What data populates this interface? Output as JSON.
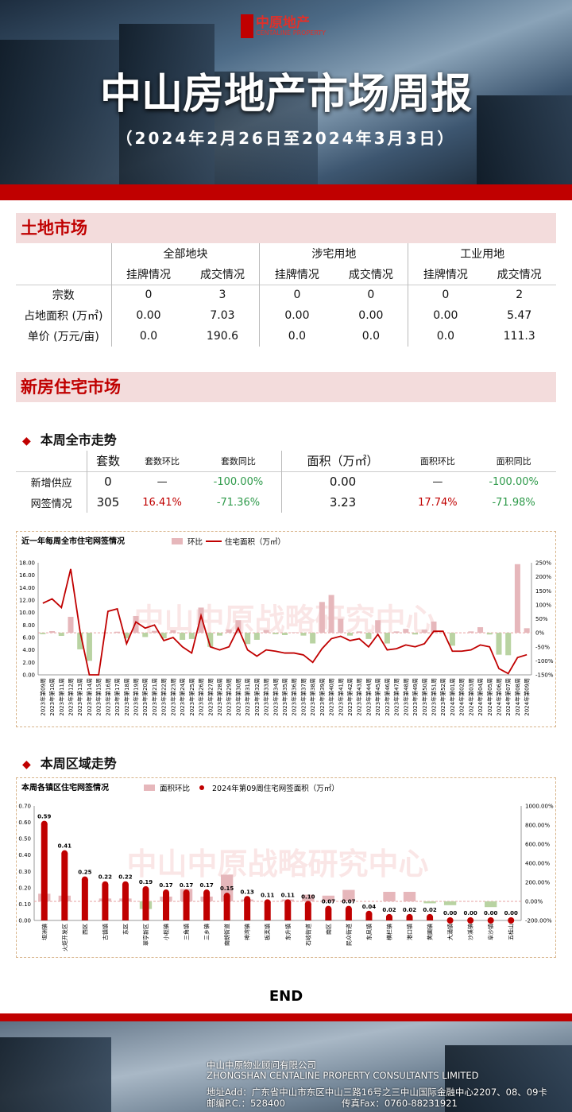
{
  "header": {
    "logo": "中原地产",
    "logo_en": "CENTALINE PROPERTY",
    "title": "中山房地产市场周报",
    "subtitle": "（2024年2月26日至2024年3月3日）"
  },
  "land_market": {
    "title": "土地市场",
    "table": {
      "groups": [
        "全部地块",
        "涉宅用地",
        "工业用地"
      ],
      "subheaders": [
        "挂牌情况",
        "成交情况",
        "挂牌情况",
        "成交情况",
        "挂牌情况",
        "成交情况"
      ],
      "rows": [
        [
          "宗数",
          "0",
          "3",
          "0",
          "0",
          "0",
          "2"
        ],
        [
          "占地面积 (万㎡)",
          "0.00",
          "7.03",
          "0.00",
          "0.00",
          "0.00",
          "5.47"
        ],
        [
          "单价 (万元/亩)",
          "0.0",
          "190.6",
          "0.0",
          "0.0",
          "0.0",
          "111.3"
        ]
      ]
    }
  },
  "new_home": {
    "title": "新房住宅市场",
    "city_trend": {
      "title": "本周全市走势",
      "table": {
        "header": [
          "",
          "套数",
          "套数环比",
          "套数同比",
          "面积（万㎡）",
          "面积环比",
          "面积同比"
        ],
        "rows": [
          [
            "新增供应",
            "0",
            "—",
            "-100.00%",
            "0.00",
            "—",
            "-100.00%"
          ],
          [
            "网签情况",
            "305",
            "16.41%",
            "-71.36%",
            "3.23",
            "17.74%",
            "-71.98%"
          ]
        ]
      }
    },
    "district_trend": {
      "title": "本周区域走势"
    }
  },
  "chart_data": [
    {
      "type": "combo",
      "title": "近一年每周全市住宅网签情况",
      "watermark": "中山中原战略研究中心",
      "grid": false,
      "categories": [
        "2023年第09周",
        "2023年第10周",
        "2023年第11周",
        "2023年第12周",
        "2023年第13周",
        "2023年第14周",
        "2023年第15周",
        "2023年第16周",
        "2023年第17周",
        "2023年第18周",
        "2023年第19周",
        "2023年第20周",
        "2023年第21周",
        "2023年第22周",
        "2023年第23周",
        "2023年第24周",
        "2023年第25周",
        "2023年第26周",
        "2023年第27周",
        "2023年第28周",
        "2023年第29周",
        "2023年第30周",
        "2023年第31周",
        "2023年第32周",
        "2023年第33周",
        "2023年第34周",
        "2023年第35周",
        "2023年第36周",
        "2023年第37周",
        "2023年第38周",
        "2023年第39周",
        "2023年第40周",
        "2023年第41周",
        "2023年第42周",
        "2023年第43周",
        "2023年第44周",
        "2023年第45周",
        "2023年第46周",
        "2023年第47周",
        "2023年第48周",
        "2023年第49周",
        "2023年第50周",
        "2023年第51周",
        "2023年第52周",
        "2024年第01周",
        "2024年第02周",
        "2024年第03周",
        "2024年第04周",
        "2024年第05周",
        "2024年第06周",
        "2024年第07周",
        "2024年第08周",
        "2024年第09周"
      ],
      "series": [
        {
          "name": "环比",
          "type": "bar",
          "axis": "y2",
          "color": "#e6b7bb",
          "negative_color": "#b9d3a2",
          "values": [
            -5,
            6,
            -11,
            57,
            -59,
            -100,
            0,
            0,
            4,
            -20,
            60,
            -15,
            7,
            -20,
            9,
            -25,
            -22,
            90,
            -50,
            -10,
            12,
            45,
            -40,
            -25,
            10,
            -5,
            -8,
            2,
            -10,
            -38,
            110,
            135,
            50,
            -10,
            5,
            -22,
            45,
            -38,
            5,
            14,
            -6,
            11,
            40,
            0,
            -46,
            0,
            5,
            20,
            -6,
            -78,
            -80,
            245,
            16.41
          ]
        },
        {
          "name": "住宅面积（万㎡）",
          "type": "line",
          "color": "#c00000",
          "values": [
            11.5,
            12.2,
            10.8,
            17.0,
            7.0,
            0,
            0,
            10.2,
            10.6,
            5.0,
            8.5,
            7.5,
            8.0,
            5.5,
            6.0,
            4.5,
            3.5,
            9.5,
            4.5,
            4.0,
            4.5,
            7.5,
            4.0,
            3.0,
            4.0,
            3.8,
            3.5,
            3.5,
            3.2,
            2.0,
            4.2,
            5.8,
            6.2,
            5.5,
            5.8,
            4.5,
            6.5,
            4.0,
            4.2,
            4.8,
            4.5,
            5.0,
            7.0,
            7.0,
            3.8,
            3.8,
            4.0,
            4.8,
            4.5,
            1.0,
            0.2,
            2.77,
            3.23
          ]
        }
      ],
      "ylim": [
        0,
        18
      ],
      "yticks": [
        {
          "value": 0,
          "label": "0.00"
        },
        {
          "value": 2,
          "label": "2.00"
        },
        {
          "value": 4,
          "label": "4.00"
        },
        {
          "value": 6,
          "label": "6.00"
        },
        {
          "value": 8,
          "label": "8.00"
        },
        {
          "value": 10,
          "label": "10.00"
        },
        {
          "value": 12,
          "label": "12.00"
        },
        {
          "value": 14,
          "label": "14.00"
        },
        {
          "value": 16,
          "label": "16.00"
        },
        {
          "value": 18,
          "label": "18.00"
        }
      ],
      "y2lim": [
        -150,
        250
      ],
      "y2ticks": [
        {
          "value": -150,
          "label": "-150%"
        },
        {
          "value": -100,
          "label": "-100%"
        },
        {
          "value": -50,
          "label": "-50%"
        },
        {
          "value": 0,
          "label": "0%"
        },
        {
          "value": 50,
          "label": "50%"
        },
        {
          "value": 100,
          "label": "100%"
        },
        {
          "value": 150,
          "label": "150%"
        },
        {
          "value": 200,
          "label": "200%"
        },
        {
          "value": 250,
          "label": "250%"
        }
      ]
    },
    {
      "type": "combo",
      "title": "本周各镇区住宅网签情况",
      "watermark": "中山中原战略研究中心",
      "grid": false,
      "categories": [
        "坦洲镇",
        "火炬开发区",
        "西区",
        "古镇镇",
        "东区",
        "翠亨新区",
        "小榄镇",
        "三角镇",
        "三乡镇",
        "南朗街道",
        "神湾镇",
        "板芙镇",
        "东升镇",
        "石岐街道",
        "南区",
        "民众街道",
        "东凤镇",
        "横栏镇",
        "港口镇",
        "黄圃镇",
        "大涌镇",
        "沙溪镇",
        "阜沙镇",
        "五桂山"
      ],
      "series": [
        {
          "name": "面积环比",
          "type": "bar",
          "axis": "y2",
          "color": "#e6b7bb",
          "negative_color": "#b9d3a2",
          "values": [
            80,
            60,
            0,
            30,
            30,
            -80,
            50,
            130,
            50,
            280,
            20,
            0,
            20,
            70,
            60,
            120,
            0,
            100,
            100,
            -20,
            -40,
            0,
            -60,
            0
          ]
        },
        {
          "name": "2024年第09周住宅网签面积（万㎡）",
          "type": "lollipop",
          "color": "#c00000",
          "values": [
            0.59,
            0.41,
            0.25,
            0.22,
            0.22,
            0.19,
            0.17,
            0.17,
            0.17,
            0.15,
            0.13,
            0.11,
            0.11,
            0.1,
            0.07,
            0.07,
            0.04,
            0.02,
            0.02,
            0.02,
            0.0,
            0.0,
            0.0,
            0.0
          ],
          "value_labels": [
            "0.59",
            "0.41",
            "0.25",
            "0.22",
            "0.22",
            "0.19",
            "0.17",
            "0.17",
            "0.17",
            "0.15",
            "0.13",
            "0.11",
            "0.11",
            "0.10",
            "0.07",
            "0.07",
            "0.04",
            "0.02",
            "0.02",
            "0.02",
            "0.00",
            "0.00",
            "0.00",
            "0.00"
          ]
        }
      ],
      "ylim": [
        0,
        0.7
      ],
      "yticks": [
        {
          "value": 0,
          "label": "0.00"
        },
        {
          "value": 0.1,
          "label": "0.10"
        },
        {
          "value": 0.2,
          "label": "0.20"
        },
        {
          "value": 0.3,
          "label": "0.30"
        },
        {
          "value": 0.4,
          "label": "0.40"
        },
        {
          "value": 0.5,
          "label": "0.50"
        },
        {
          "value": 0.6,
          "label": "0.60"
        },
        {
          "value": 0.7,
          "label": "0.70"
        }
      ],
      "y2lim": [
        -200,
        1000
      ],
      "y2ticks": [
        {
          "value": -200,
          "label": "-200.00%"
        },
        {
          "value": 0,
          "label": "0.00%"
        },
        {
          "value": 200,
          "label": "200.00%"
        },
        {
          "value": 400,
          "label": "400.00%"
        },
        {
          "value": 600,
          "label": "600.00%"
        },
        {
          "value": 800,
          "label": "800.00%"
        },
        {
          "value": 1000,
          "label": "1000.00%"
        }
      ]
    }
  ],
  "end": "END",
  "footer": {
    "company": "中山中原物业顾问有限公司",
    "company_en": "ZHONGSHAN CENTALINE PROPERTY CONSULTANTS LIMITED",
    "address": "地址Add：广东省中山市东区中山三路16号之三中山国际金融中心2207、08、09卡",
    "postcode": "邮编P.C.：528400",
    "fax": "传真Fax：0760-88231921"
  }
}
